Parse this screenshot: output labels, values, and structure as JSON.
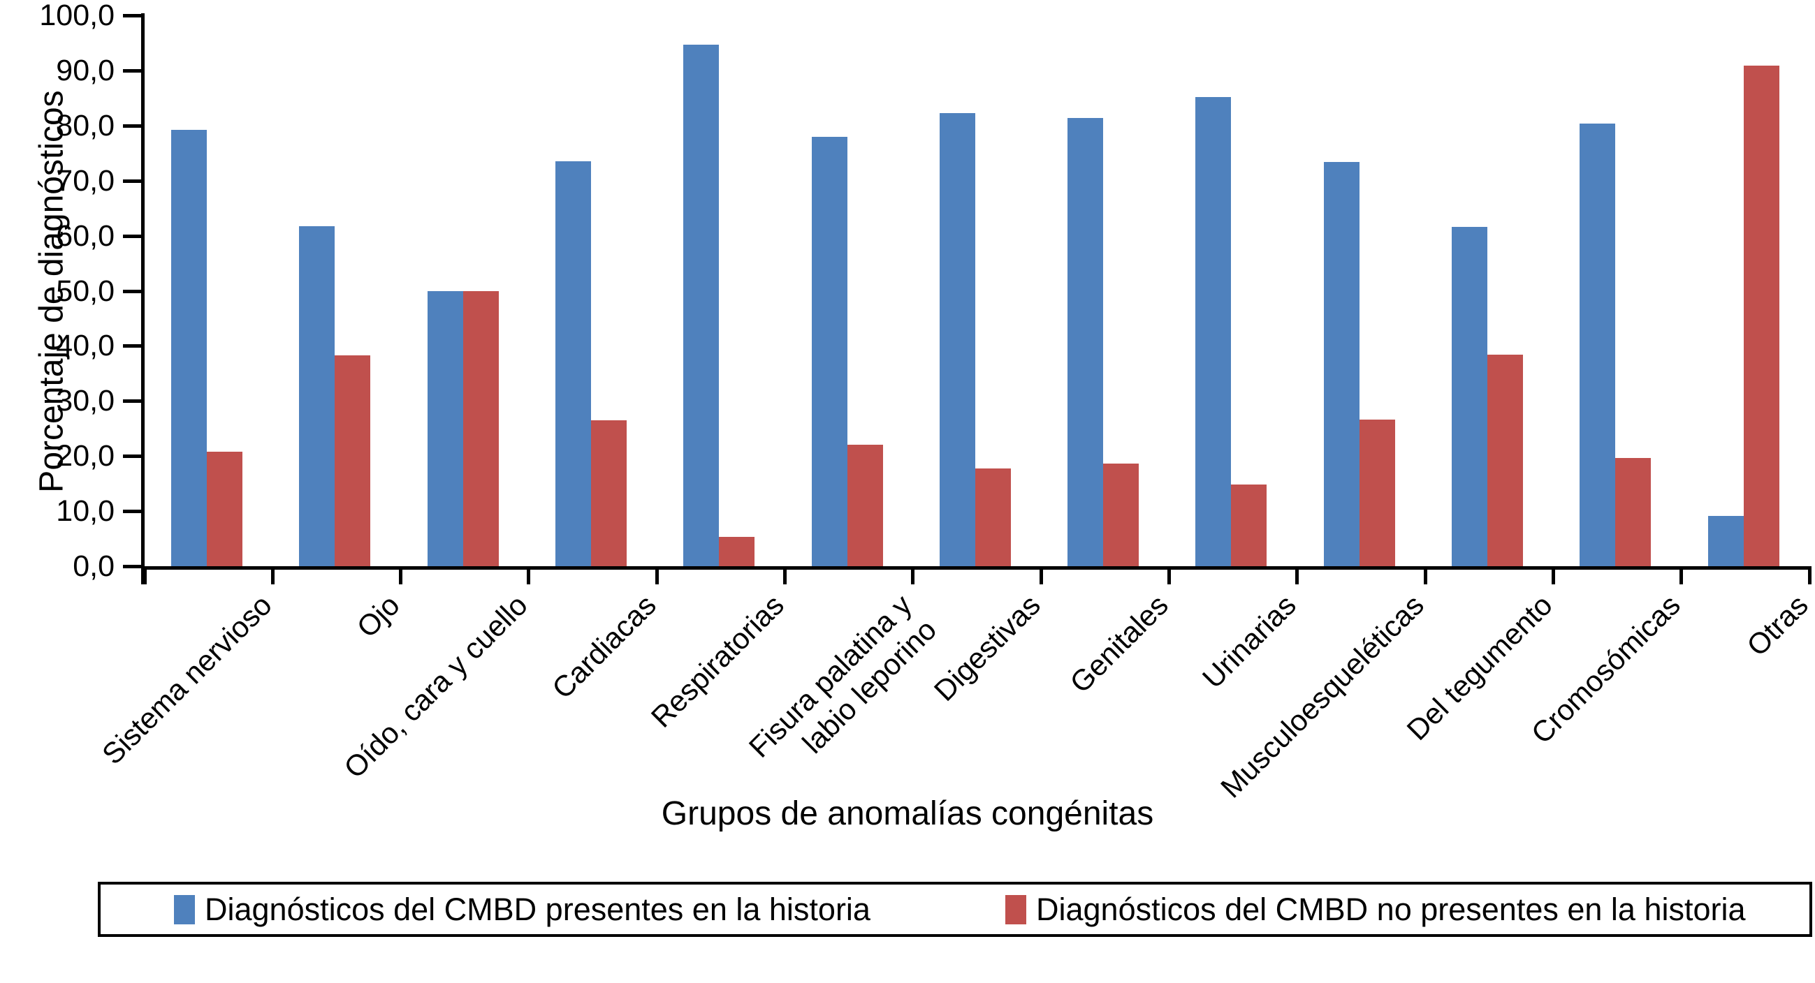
{
  "chart_data": {
    "type": "bar",
    "title": "",
    "xlabel": "Grupos de anomalías congénitas",
    "ylabel": "Porcentaje de diagnósticos",
    "ylim": [
      0,
      100
    ],
    "ytick_step": 10,
    "yticks": [
      "0,0",
      "10,0",
      "20,0",
      "30,0",
      "40,0",
      "50,0",
      "60,0",
      "70,0",
      "80,0",
      "90,0",
      "100,0"
    ],
    "grid": false,
    "legend_position": "bottom",
    "categories": [
      "Sistema nervioso",
      "Ojo",
      "Oído, cara y cuello",
      "Cardiacas",
      "Respiratorias",
      "Fisura palatina y\nlabio leporino",
      "Digestivas",
      "Genitales",
      "Urinarias",
      "Musculoesqueléticas",
      "Del tegumento",
      "Cromosómicas",
      "Otras"
    ],
    "series": [
      {
        "name": "Diagnósticos del CMBD presentes en la historia",
        "color": "#4F81BD",
        "values": [
          79.2,
          61.7,
          50.0,
          73.5,
          94.7,
          77.9,
          82.3,
          81.4,
          85.2,
          73.4,
          61.6,
          80.4,
          9.1
        ]
      },
      {
        "name": "Diagnósticos del CMBD no presentes en la historia",
        "color": "#C0504D",
        "values": [
          20.8,
          38.3,
          50.0,
          26.5,
          5.3,
          22.1,
          17.7,
          18.6,
          14.8,
          26.6,
          38.4,
          19.6,
          90.9
        ]
      }
    ],
    "axis_color": "#000000",
    "background_color": "#FFFFFF"
  }
}
